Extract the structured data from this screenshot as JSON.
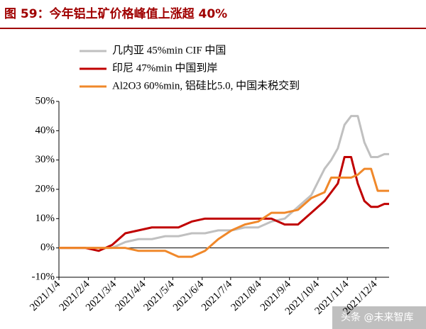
{
  "title": "图 59：今年铝土矿价格峰值上涨超 40%",
  "watermark": "头条 @未来智库",
  "chart_data": {
    "type": "line",
    "x": [
      "2021/1/4",
      "2021/1/18",
      "2021/2/1",
      "2021/2/15",
      "2021/3/1",
      "2021/3/15",
      "2021/3/29",
      "2021/4/12",
      "2021/4/26",
      "2021/5/10",
      "2021/5/24",
      "2021/6/7",
      "2021/6/21",
      "2021/7/5",
      "2021/7/19",
      "2021/8/2",
      "2021/8/16",
      "2021/8/30",
      "2021/9/13",
      "2021/9/27",
      "2021/10/11",
      "2021/10/18",
      "2021/10/25",
      "2021/11/1",
      "2021/11/8",
      "2021/11/15",
      "2021/11/22",
      "2021/11/29",
      "2021/12/6",
      "2021/12/13",
      "2021/12/18"
    ],
    "series": [
      {
        "name": "几内亚 45%min CIF 中国",
        "color": "#c0c0c0",
        "values": [
          0,
          0,
          0,
          0,
          0,
          2,
          3,
          3,
          4,
          4,
          5,
          5,
          6,
          6,
          7,
          7,
          9,
          10,
          14,
          18,
          27,
          30,
          34,
          42,
          45,
          45,
          36,
          31,
          31,
          32,
          32
        ]
      },
      {
        "name": "印尼 47%min 中国到岸",
        "color": "#c00000",
        "values": [
          0,
          0,
          0,
          -1,
          1,
          5,
          6,
          7,
          7,
          7,
          9,
          10,
          10,
          10,
          10,
          10,
          10,
          8,
          8,
          12,
          16,
          19,
          22,
          31,
          31,
          22,
          16,
          14,
          14,
          15,
          15
        ]
      },
      {
        "name": "Al2O3 60%min, 铝硅比5.0, 中国未税交到",
        "color": "#f0882a",
        "values": [
          0,
          0,
          0,
          0,
          0,
          0,
          -1,
          -1,
          -1,
          -3,
          -3,
          -1,
          3,
          6,
          8,
          9,
          12,
          12,
          13,
          17,
          19,
          24,
          24,
          24,
          24,
          25,
          27,
          27,
          19.5,
          19.5,
          19.5
        ]
      }
    ],
    "xlim": [
      "2021/1/4",
      "2021/12/18"
    ],
    "xticks": [
      "2021/1/4",
      "2021/2/4",
      "2021/3/4",
      "2021/4/4",
      "2021/5/4",
      "2021/6/4",
      "2021/7/4",
      "2021/8/4",
      "2021/9/4",
      "2021/10/4",
      "2021/11/4",
      "2021/12/4"
    ],
    "ylim": [
      -10,
      50
    ],
    "yticks": [
      {
        "value": -10,
        "label": "-10%"
      },
      {
        "value": 0,
        "label": "0%"
      },
      {
        "value": 10,
        "label": "10%"
      },
      {
        "value": 20,
        "label": "20%"
      },
      {
        "value": 30,
        "label": "30%"
      },
      {
        "value": 40,
        "label": "40%"
      },
      {
        "value": 50,
        "label": "50%"
      }
    ]
  }
}
